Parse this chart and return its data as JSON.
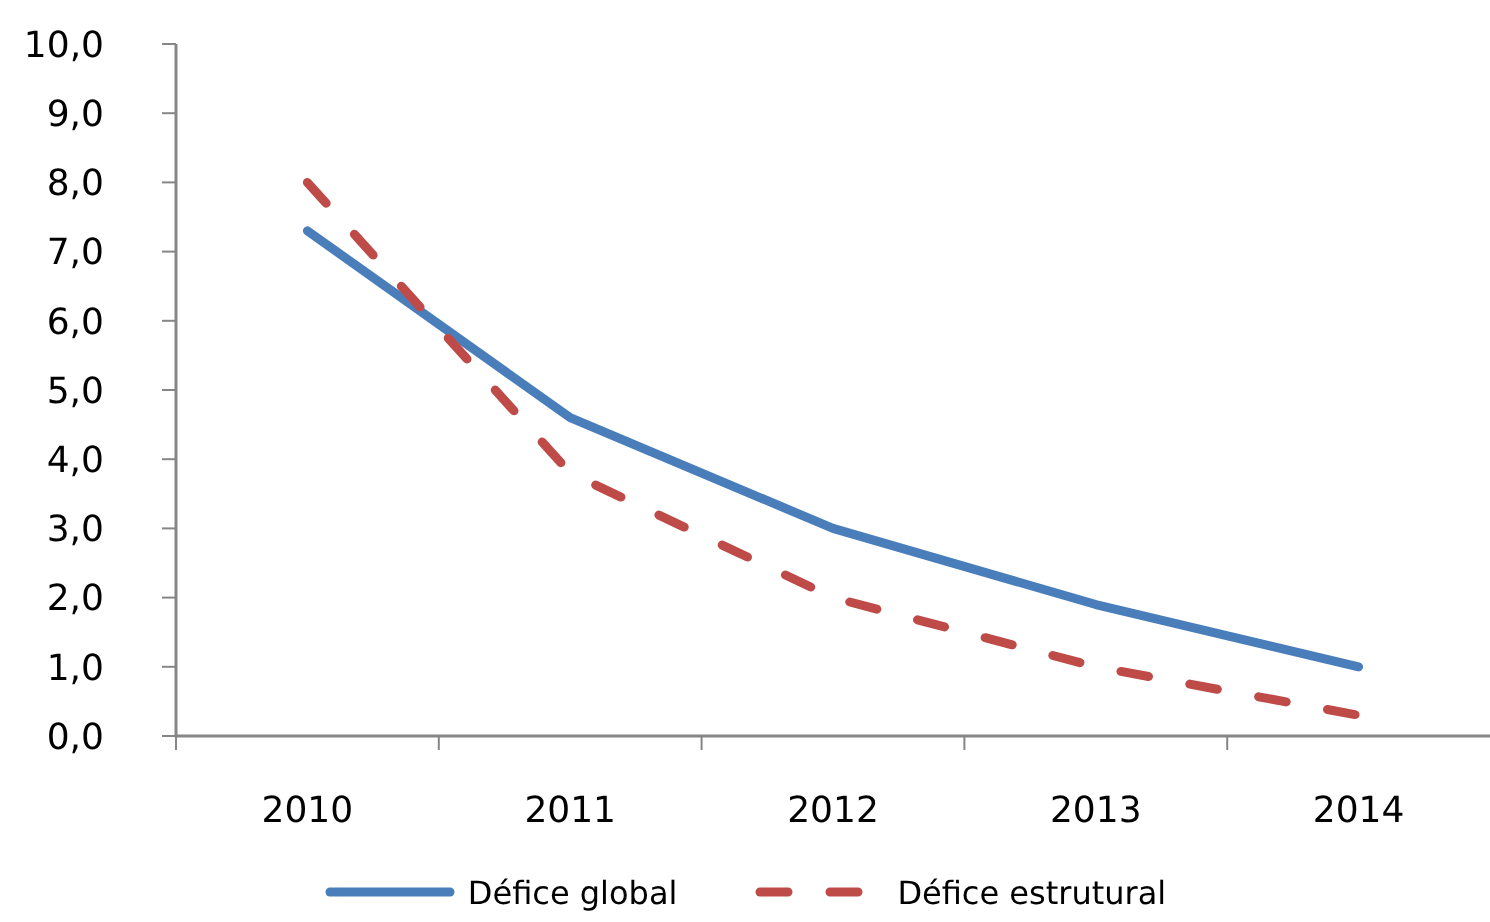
{
  "chart_data": {
    "type": "line",
    "categories": [
      "2010",
      "2011",
      "2012",
      "2013",
      "2014"
    ],
    "series": [
      {
        "name": "Défice global",
        "color": "#4a7ebb",
        "values": [
          7.3,
          4.6,
          3.0,
          1.9,
          1.0
        ],
        "line_style": "solid"
      },
      {
        "name": "Défice estrutural",
        "color": "#be4b48",
        "values": [
          8.0,
          3.8,
          2.0,
          1.0,
          0.3
        ],
        "line_style": "dashed"
      }
    ],
    "ylim": [
      0,
      10
    ],
    "yticks": [
      {
        "value": 0,
        "label": "0,0"
      },
      {
        "value": 1,
        "label": "1,0"
      },
      {
        "value": 2,
        "label": "2,0"
      },
      {
        "value": 3,
        "label": "3,0"
      },
      {
        "value": 4,
        "label": "4,0"
      },
      {
        "value": 5,
        "label": "5,0"
      },
      {
        "value": 6,
        "label": "6,0"
      },
      {
        "value": 7,
        "label": "7,0"
      },
      {
        "value": 8,
        "label": "8,0"
      },
      {
        "value": 9,
        "label": "9,0"
      },
      {
        "value": 10,
        "label": "10,0"
      }
    ],
    "legend": "bottom",
    "marker": "none"
  }
}
